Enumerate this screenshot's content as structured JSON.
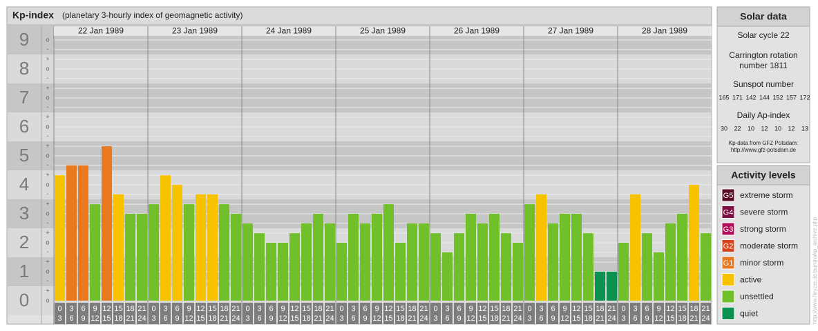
{
  "chart_data": {
    "type": "bar",
    "title": "Kp-index",
    "subtitle": "(planetary 3-hourly index of geomagnetic activity)",
    "days": [
      "22 Jan 1989",
      "23 Jan 1989",
      "24 Jan 1989",
      "25 Jan 1989",
      "26 Jan 1989",
      "27 Jan 1989",
      "28 Jan 1989"
    ],
    "x_labels": [
      [
        "0",
        "3"
      ],
      [
        "3",
        "6"
      ],
      [
        "6",
        "9"
      ],
      [
        "9",
        "12"
      ],
      [
        "12",
        "15"
      ],
      [
        "15",
        "18"
      ],
      [
        "18",
        "21"
      ],
      [
        "21",
        "24"
      ]
    ],
    "values": [
      4.33,
      4.67,
      4.67,
      3.33,
      5.33,
      3.67,
      3,
      3,
      3.33,
      4.33,
      4,
      3.33,
      3.67,
      3.67,
      3.33,
      3,
      2.67,
      2.33,
      2,
      2,
      2.33,
      2.67,
      3,
      2.67,
      2,
      3,
      2.67,
      3,
      3.33,
      2,
      2.67,
      2.67,
      2.33,
      1.67,
      2.33,
      3,
      2.67,
      3,
      2.33,
      2,
      3.33,
      3.67,
      2.67,
      3,
      3,
      2.33,
      1,
      1,
      2,
      3.67,
      2.33,
      1.67,
      2.67,
      3,
      4,
      2.33
    ],
    "colors": [
      "#f7c300",
      "#e8791e",
      "#e8791e",
      "#72bf2c",
      "#e8791e",
      "#f7c300",
      "#72bf2c",
      "#72bf2c",
      "#72bf2c",
      "#f7c300",
      "#f7c300",
      "#72bf2c",
      "#f7c300",
      "#f7c300",
      "#72bf2c",
      "#72bf2c",
      "#72bf2c",
      "#72bf2c",
      "#72bf2c",
      "#72bf2c",
      "#72bf2c",
      "#72bf2c",
      "#72bf2c",
      "#72bf2c",
      "#72bf2c",
      "#72bf2c",
      "#72bf2c",
      "#72bf2c",
      "#72bf2c",
      "#72bf2c",
      "#72bf2c",
      "#72bf2c",
      "#72bf2c",
      "#72bf2c",
      "#72bf2c",
      "#72bf2c",
      "#72bf2c",
      "#72bf2c",
      "#72bf2c",
      "#72bf2c",
      "#72bf2c",
      "#f7c300",
      "#72bf2c",
      "#72bf2c",
      "#72bf2c",
      "#72bf2c",
      "#0c9150",
      "#0c9150",
      "#72bf2c",
      "#f7c300",
      "#72bf2c",
      "#72bf2c",
      "#72bf2c",
      "#72bf2c",
      "#f7c300",
      "#72bf2c"
    ],
    "ylim": [
      0,
      9.5
    ],
    "yticks": [
      0,
      1,
      2,
      3,
      4,
      5,
      6,
      7,
      8,
      9
    ],
    "minor_ticks": [
      {
        "value": 0,
        "label": "o"
      },
      {
        "value": 0.33,
        "label": "+"
      },
      {
        "value": 0.67,
        "label": "-"
      },
      {
        "value": 1,
        "label": "o"
      },
      {
        "value": 1.33,
        "label": "+"
      },
      {
        "value": 1.67,
        "label": "-"
      },
      {
        "value": 2,
        "label": "o"
      },
      {
        "value": 2.33,
        "label": "+"
      },
      {
        "value": 2.67,
        "label": "-"
      },
      {
        "value": 3,
        "label": "o"
      },
      {
        "value": 3.33,
        "label": "+"
      },
      {
        "value": 3.67,
        "label": "-"
      },
      {
        "value": 4,
        "label": "o"
      },
      {
        "value": 4.33,
        "label": "+"
      },
      {
        "value": 4.67,
        "label": "-"
      },
      {
        "value": 5,
        "label": "o"
      },
      {
        "value": 5.33,
        "label": "+"
      },
      {
        "value": 5.67,
        "label": "-"
      },
      {
        "value": 6,
        "label": "o"
      },
      {
        "value": 6.33,
        "label": "+"
      },
      {
        "value": 6.67,
        "label": "-"
      },
      {
        "value": 7,
        "label": "o"
      },
      {
        "value": 7.33,
        "label": "+"
      },
      {
        "value": 7.67,
        "label": "-"
      },
      {
        "value": 8,
        "label": "o"
      },
      {
        "value": 8.33,
        "label": "+"
      },
      {
        "value": 8.67,
        "label": "-"
      },
      {
        "value": 9,
        "label": "o"
      }
    ],
    "grid": true
  },
  "solar_data": {
    "title": "Solar data",
    "cycle": "Solar cycle 22",
    "carrington": [
      "Carrington rotation",
      "number 1811"
    ],
    "sunspot_title": "Sunspot number",
    "sunspot": [
      "165",
      "171",
      "142",
      "144",
      "152",
      "157",
      "172"
    ],
    "ap_title": "Daily Ap-index",
    "ap": [
      "30",
      "22",
      "10",
      "12",
      "10",
      "12",
      "13"
    ],
    "credit": [
      "Kp-data from GFZ Potsdam:",
      "http://www.gfz-potsdam.de"
    ]
  },
  "legend": {
    "title": "Activity levels",
    "items": [
      {
        "badge": "G5",
        "label": "extreme storm",
        "color": "#5a0a26"
      },
      {
        "badge": "G4",
        "label": "severe storm",
        "color": "#7c1040"
      },
      {
        "badge": "G3",
        "label": "strong storm",
        "color": "#b0105a"
      },
      {
        "badge": "G2",
        "label": "moderate storm",
        "color": "#d8441e"
      },
      {
        "badge": "G1",
        "label": "minor storm",
        "color": "#e8791e"
      },
      {
        "label": "active",
        "color": "#f7c300"
      },
      {
        "label": "unsettled",
        "color": "#72bf2c"
      },
      {
        "label": "quiet",
        "color": "#0c9150"
      }
    ]
  },
  "watermark": "http://www.fleyzer.de/aurora/kp_archive.php"
}
